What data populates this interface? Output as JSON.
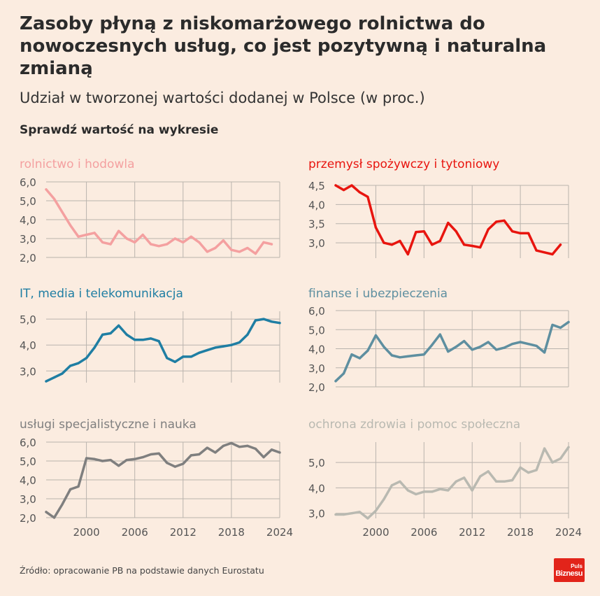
{
  "title": "Zasoby płyną z niskomarżowego rolnictwa do nowoczesnych usług, co jest pozytywną i naturalna zmianą",
  "subtitle": "Udział w tworzonej wartości dodanej w Polsce (w proc.)",
  "prompt": "Sprawdź wartość na wykresie",
  "source": "Źródło: opracowanie PB na podstawie danych Eurostatu",
  "logo": {
    "line1": "Puls",
    "line2": "Biznesu",
    "color": "#e2241a"
  },
  "colors": {
    "background": "#fbece0",
    "grid": "#b9b3ad",
    "label": "#555555"
  },
  "chart_data": [
    {
      "type": "line",
      "title": "rolnictwo i hodowla",
      "color": "#f4a0a0",
      "x": [
        1995,
        1996,
        1997,
        1998,
        1999,
        2000,
        2001,
        2002,
        2003,
        2004,
        2005,
        2006,
        2007,
        2008,
        2009,
        2010,
        2011,
        2012,
        2013,
        2014,
        2015,
        2016,
        2017,
        2018,
        2019,
        2020,
        2021,
        2022,
        2023
      ],
      "values": [
        5.6,
        5.1,
        4.4,
        3.7,
        3.1,
        3.2,
        3.3,
        2.8,
        2.7,
        3.4,
        3.0,
        2.8,
        3.2,
        2.7,
        2.6,
        2.7,
        3.0,
        2.8,
        3.1,
        2.8,
        2.3,
        2.5,
        2.9,
        2.4,
        2.3,
        2.5,
        2.2,
        2.8,
        2.7
      ],
      "yticks": [
        "6,0",
        "5,0",
        "4,0",
        "3,0",
        "2,0"
      ],
      "ytick_values": [
        6,
        5,
        4,
        3,
        2
      ],
      "ylim": [
        2,
        6
      ],
      "grid": true
    },
    {
      "type": "line",
      "title": "przemysł spożywczy i tytoniowy",
      "color": "#e8150f",
      "x": [
        1995,
        1996,
        1997,
        1998,
        1999,
        2000,
        2001,
        2002,
        2003,
        2004,
        2005,
        2006,
        2007,
        2008,
        2009,
        2010,
        2011,
        2012,
        2013,
        2014,
        2015,
        2016,
        2017,
        2018,
        2019,
        2020,
        2021,
        2022,
        2023
      ],
      "values": [
        4.5,
        4.38,
        4.5,
        4.32,
        4.2,
        3.4,
        3.0,
        2.95,
        3.05,
        2.7,
        3.28,
        3.3,
        2.95,
        3.05,
        3.52,
        3.3,
        2.95,
        2.92,
        2.88,
        3.35,
        3.55,
        3.58,
        3.3,
        3.25,
        3.25,
        2.8,
        2.75,
        2.7,
        2.95
      ],
      "yticks": [
        "4,5",
        "4,0",
        "3,5",
        "3,0"
      ],
      "ytick_values": [
        4.5,
        4.0,
        3.5,
        3.0
      ],
      "ylim": [
        2.6,
        4.5
      ],
      "grid": true
    },
    {
      "type": "line",
      "title": "IT, media i telekomunikacja",
      "color": "#1f7ea3",
      "x": [
        1995,
        1996,
        1997,
        1998,
        1999,
        2000,
        2001,
        2002,
        2003,
        2004,
        2005,
        2006,
        2007,
        2008,
        2009,
        2010,
        2011,
        2012,
        2013,
        2014,
        2015,
        2016,
        2017,
        2018,
        2019,
        2020,
        2021,
        2022,
        2023,
        2024
      ],
      "values": [
        2.6,
        2.75,
        2.9,
        3.2,
        3.3,
        3.5,
        3.9,
        4.4,
        4.45,
        4.75,
        4.4,
        4.2,
        4.2,
        4.25,
        4.15,
        3.5,
        3.35,
        3.55,
        3.55,
        3.7,
        3.8,
        3.9,
        3.95,
        4.0,
        4.1,
        4.4,
        4.95,
        5.0,
        4.9,
        4.85
      ],
      "yticks": [
        "5,0",
        "4,0",
        "3,0"
      ],
      "ytick_values": [
        5,
        4,
        3
      ],
      "ylim": [
        2.55,
        5.3
      ],
      "grid": true
    },
    {
      "type": "line",
      "title": "finanse i ubezpieczenia",
      "color": "#5e8fa0",
      "x": [
        1995,
        1996,
        1997,
        1998,
        1999,
        2000,
        2001,
        2002,
        2003,
        2004,
        2005,
        2006,
        2007,
        2008,
        2009,
        2010,
        2011,
        2012,
        2013,
        2014,
        2015,
        2016,
        2017,
        2018,
        2019,
        2020,
        2021,
        2022,
        2023,
        2024
      ],
      "values": [
        2.3,
        2.7,
        3.7,
        3.5,
        3.9,
        4.7,
        4.1,
        3.65,
        3.55,
        3.6,
        3.65,
        3.7,
        4.2,
        4.75,
        3.85,
        4.1,
        4.4,
        3.95,
        4.1,
        4.35,
        3.95,
        4.05,
        4.25,
        4.35,
        4.25,
        4.15,
        3.8,
        5.25,
        5.1,
        5.4
      ],
      "yticks": [
        "6,0",
        "5,0",
        "4,0",
        "3,0",
        "2,0"
      ],
      "ytick_values": [
        6,
        5,
        4,
        3,
        2
      ],
      "ylim": [
        2,
        6
      ],
      "grid": true
    },
    {
      "type": "line",
      "title": "usługi specjalistyczne i nauka",
      "color": "#7f7f7f",
      "x": [
        1995,
        1996,
        1997,
        1998,
        1999,
        2000,
        2001,
        2002,
        2003,
        2004,
        2005,
        2006,
        2007,
        2008,
        2009,
        2010,
        2011,
        2012,
        2013,
        2014,
        2015,
        2016,
        2017,
        2018,
        2019,
        2020,
        2021,
        2022,
        2023,
        2024
      ],
      "values": [
        2.3,
        2.0,
        2.7,
        3.5,
        3.65,
        5.15,
        5.1,
        5.0,
        5.05,
        4.75,
        5.05,
        5.1,
        5.2,
        5.35,
        5.4,
        4.9,
        4.7,
        4.85,
        5.3,
        5.35,
        5.7,
        5.45,
        5.8,
        5.95,
        5.75,
        5.8,
        5.65,
        5.2,
        5.6,
        5.45
      ],
      "yticks": [
        "6,0",
        "5,0",
        "4,0",
        "3,0",
        "2,0"
      ],
      "ytick_values": [
        6,
        5,
        4,
        3,
        2
      ],
      "ylim": [
        2,
        6
      ],
      "grid": true
    },
    {
      "type": "line",
      "title": "ochrona zdrowia i pomoc społeczna",
      "color": "#b9b9b1",
      "x": [
        1995,
        1996,
        1997,
        1998,
        1999,
        2000,
        2001,
        2002,
        2003,
        2004,
        2005,
        2006,
        2007,
        2008,
        2009,
        2010,
        2011,
        2012,
        2013,
        2014,
        2015,
        2016,
        2017,
        2018,
        2019,
        2020,
        2021,
        2022,
        2023,
        2024
      ],
      "values": [
        2.95,
        2.95,
        3.0,
        3.05,
        2.8,
        3.1,
        3.55,
        4.1,
        4.25,
        3.9,
        3.75,
        3.85,
        3.85,
        3.95,
        3.9,
        4.25,
        4.4,
        3.9,
        4.45,
        4.65,
        4.25,
        4.25,
        4.3,
        4.8,
        4.6,
        4.7,
        5.55,
        5.0,
        5.15,
        5.6
      ],
      "yticks": [
        "5,0",
        "4,0",
        "3,0"
      ],
      "ytick_values": [
        5,
        4,
        3
      ],
      "ylim": [
        2.8,
        5.8
      ],
      "grid": true
    }
  ],
  "xaxis": {
    "ticks": [
      "2000",
      "2006",
      "2012",
      "2018",
      "2024"
    ],
    "tick_values": [
      2000,
      2006,
      2012,
      2018,
      2024
    ]
  }
}
